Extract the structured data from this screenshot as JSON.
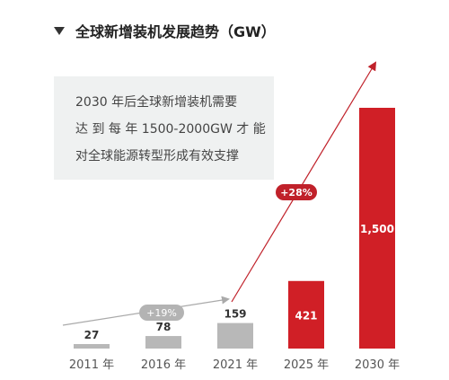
{
  "header": {
    "title": "全球新增装机发展趋势（GW）",
    "icon": "triangle-down-icon"
  },
  "note": {
    "lines": [
      "2030 年后全球新增装机需要",
      "达 到 每 年 1500-2000GW 才 能",
      "对全球能源转型形成有效支撑"
    ]
  },
  "chart_data": {
    "type": "bar",
    "title": "全球新增装机发展趋势（GW）",
    "categories": [
      "2011 年",
      "2016 年",
      "2021 年",
      "2025 年",
      "2030 年"
    ],
    "values": [
      27,
      78,
      159,
      421,
      1500
    ],
    "value_labels": [
      "27",
      "78",
      "159",
      "421",
      "1,500"
    ],
    "bar_colors": [
      "#b8b8b8",
      "#b8b8b8",
      "#b8b8b8",
      "#d01f26",
      "#d01f26"
    ],
    "ylim": [
      0,
      1500
    ],
    "grid": false,
    "annotations": [
      {
        "label": "+19%",
        "from": "2011 年",
        "to": "2021 年",
        "color": "#aaaaaa"
      },
      {
        "label": "+28%",
        "from": "2021 年",
        "to": "2030 年",
        "color": "#c0212a"
      }
    ]
  }
}
